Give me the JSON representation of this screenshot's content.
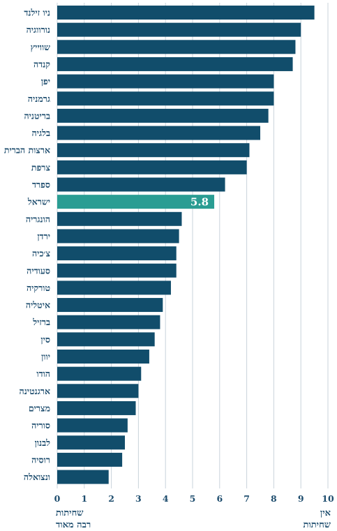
{
  "chart_data": {
    "type": "bar",
    "orientation": "horizontal",
    "categories": [
      "ניו זילנד",
      "נורווגיה",
      "שווייץ",
      "קנדה",
      "יפן",
      "גרמניה",
      "בריטניה",
      "בלגיה",
      "ארצות הברית",
      "צרפת",
      "ספרד",
      "ישראל",
      "הונגריה",
      "ירדן",
      "צ׳כיה",
      "סעודיה",
      "טורקיה",
      "איטליה",
      "ברזיל",
      "סין",
      "יוון",
      "הודו",
      "ארגנטינה",
      "מצרים",
      "סוריה",
      "לבנון",
      "רוסיה",
      "ונצואלה"
    ],
    "values": [
      9.5,
      9.0,
      8.8,
      8.7,
      8.0,
      8.0,
      7.8,
      7.5,
      7.1,
      7.0,
      6.2,
      5.8,
      4.6,
      4.5,
      4.4,
      4.4,
      4.2,
      3.9,
      3.8,
      3.6,
      3.4,
      3.1,
      3.0,
      2.9,
      2.6,
      2.5,
      2.4,
      1.9
    ],
    "highlight": {
      "category": "ישראל",
      "label": "5.8",
      "color": "#2a9d93"
    },
    "bar_color": "#114d6b",
    "axis_color": "#1e4d6e",
    "xlim": [
      0,
      10
    ],
    "xticks": [
      "0",
      "1",
      "2",
      "3",
      "4",
      "5",
      "6",
      "7",
      "8",
      "9",
      "10"
    ],
    "grid": "vertical",
    "axis_end_labels": {
      "low": [
        "שחיתות",
        "רבה מאוד"
      ],
      "high": [
        "אין",
        "שחיתות"
      ]
    }
  }
}
